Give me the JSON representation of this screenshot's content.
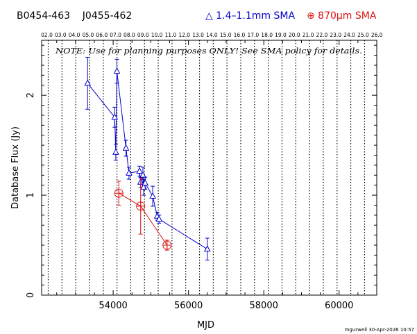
{
  "header": {
    "source_names": "B0454-463    J0455-462",
    "legend_blue": "△ 1.4–1.1mm SMA",
    "legend_red": "⊕ 870μm SMA",
    "note": "NOTE: Use for planning purposes ONLY! See SMA policy for details.",
    "footer": "mgurwell 30-Apr-2026 10:57"
  },
  "colors": {
    "blue": "#0000cc",
    "red": "#dd1111",
    "axis": "#000000",
    "grid": "#000000"
  },
  "chart_data": {
    "type": "scatter",
    "xlabel": "MJD",
    "ylabel": "Database Flux (Jy)",
    "xlim": [
      52100,
      61000
    ],
    "ylim": [
      0,
      2.55
    ],
    "xticks": [
      54000,
      56000,
      58000,
      60000
    ],
    "yticks": [
      0,
      1,
      2
    ],
    "top_axis_labels": [
      "02.0",
      "03.0",
      "04.0",
      "05.0",
      "06.0",
      "07.0",
      "08.0",
      "09.0",
      "10.0",
      "11.0",
      "12.0",
      "13.0",
      "14.0",
      "15.0",
      "16.0",
      "17.0",
      "18.0",
      "19.0",
      "20.0",
      "21.0",
      "22.0",
      "23.0",
      "24.0",
      "25.0",
      "26.0"
    ],
    "year_gridlines": [
      52275,
      52640,
      53005,
      53371,
      53736,
      54101,
      54466,
      54832,
      55197,
      55562,
      55927,
      56293,
      56658,
      57023,
      57388,
      57754,
      58119,
      58484,
      58849,
      59215,
      59580,
      59945,
      60310,
      60676
    ],
    "series": [
      {
        "name": "1.4–1.1mm SMA",
        "color": "#0000cc",
        "marker": "triangle",
        "points": [
          {
            "x": 53320,
            "y": 2.12,
            "err": 0.26
          },
          {
            "x": 54040,
            "y": 1.78,
            "err": 0.1
          },
          {
            "x": 54070,
            "y": 1.43,
            "err": 0.08
          },
          {
            "x": 54100,
            "y": 2.24,
            "err": 0.12
          },
          {
            "x": 54340,
            "y": 1.47,
            "err": 0.08
          },
          {
            "x": 54420,
            "y": 1.22,
            "err": 0.06
          },
          {
            "x": 54700,
            "y": 1.24,
            "err": 0.05
          },
          {
            "x": 54730,
            "y": 1.13,
            "err": 0.05
          },
          {
            "x": 54790,
            "y": 1.2,
            "err": 0.08
          },
          {
            "x": 54810,
            "y": 1.08,
            "err": 0.08
          },
          {
            "x": 54850,
            "y": 1.12,
            "err": 0.06
          },
          {
            "x": 55050,
            "y": 0.99,
            "err": 0.1
          },
          {
            "x": 55170,
            "y": 0.79,
            "err": 0.04
          },
          {
            "x": 55220,
            "y": 0.76,
            "err": 0.04
          },
          {
            "x": 56500,
            "y": 0.46,
            "err": 0.11
          }
        ]
      },
      {
        "name": "870μm SMA",
        "color": "#dd1111",
        "marker": "circle-plus",
        "points": [
          {
            "x": 54150,
            "y": 1.02,
            "err": 0.12
          },
          {
            "x": 54730,
            "y": 0.89,
            "err": 0.28
          },
          {
            "x": 55430,
            "y": 0.5,
            "err": 0.05
          }
        ]
      }
    ]
  }
}
